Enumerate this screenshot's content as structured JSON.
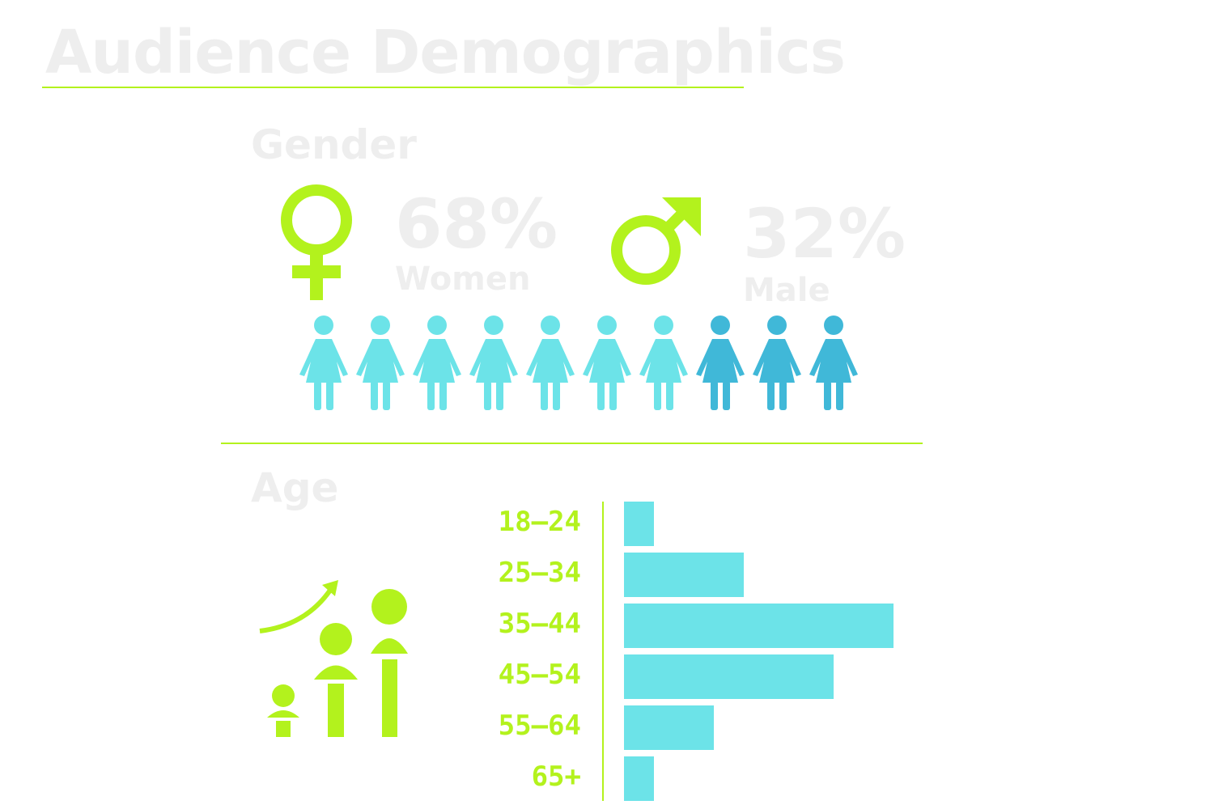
{
  "title": "Audience Demographics",
  "gender": {
    "heading": "Gender",
    "women": {
      "percent": "68%",
      "label": "Women",
      "share": 0.68
    },
    "male": {
      "percent": "32%",
      "label": "Male",
      "share": 0.32
    },
    "figures": {
      "total": 10,
      "highlight_count": 7
    },
    "icons": {
      "women": "female-symbol-icon",
      "male": "male-symbol-icon",
      "person": "person-figure-icon"
    }
  },
  "colors": {
    "accent": "#b3f21d",
    "light": "#6ce3e8",
    "dark": "#40b8d8",
    "heading": "#eeeeee"
  },
  "chart_data": {
    "type": "bar",
    "orientation": "horizontal",
    "title": "Age",
    "categories": [
      "18–24",
      "25–34",
      "35–44",
      "45–54",
      "55–64",
      "65+"
    ],
    "values": [
      5,
      20,
      45,
      35,
      15,
      5
    ],
    "xlim": [
      0,
      45
    ],
    "grid": false,
    "color": "#6ce3e8"
  }
}
